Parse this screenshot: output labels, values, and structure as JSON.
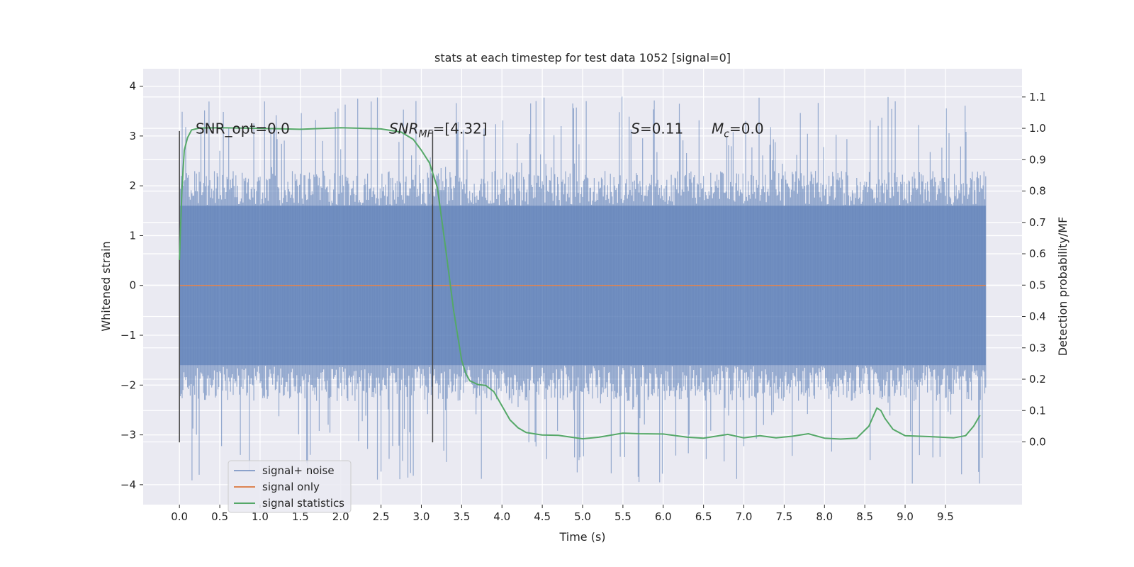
{
  "chart_data": {
    "type": "line",
    "title": "stats at each timestep for test data 1052 [signal=0]",
    "xlabel": "Time (s)",
    "ylabel": "Whitened strain",
    "ylabel_right": "Detection probability/MF",
    "xlim": [
      -0.45,
      10.45
    ],
    "ylim": [
      -4.4,
      4.35
    ],
    "ylim_right": [
      -0.2,
      1.19
    ],
    "xticks": [
      0.0,
      0.5,
      1.0,
      1.5,
      2.0,
      2.5,
      3.0,
      3.5,
      4.0,
      4.5,
      5.0,
      5.5,
      6.0,
      6.5,
      7.0,
      7.5,
      8.0,
      8.5,
      9.0,
      9.5
    ],
    "xtick_labels": [
      "0.0",
      "0.5",
      "1.0",
      "1.5",
      "2.0",
      "2.5",
      "3.0",
      "3.5",
      "4.0",
      "4.5",
      "5.0",
      "5.5",
      "6.0",
      "6.5",
      "7.0",
      "7.5",
      "8.0",
      "8.5",
      "9.0",
      "9.5"
    ],
    "yticks": [
      4,
      3,
      2,
      1,
      0,
      -1,
      -2,
      -3,
      -4
    ],
    "ytick_labels": [
      "4",
      "3",
      "2",
      "1",
      "0",
      "−1",
      "−2",
      "−3",
      "−4"
    ],
    "yticks_right": [
      1.1,
      1.0,
      0.9,
      0.8,
      0.7,
      0.6,
      0.5,
      0.4,
      0.3,
      0.2,
      0.1,
      0.0
    ],
    "ytick_labels_right": [
      "1.1",
      "1.0",
      "0.9",
      "0.8",
      "0.7",
      "0.6",
      "0.5",
      "0.4",
      "0.3",
      "0.2",
      "0.1",
      "0.0"
    ],
    "grid": true,
    "legend_position": "lower-left",
    "background_color": "#eaeaf2",
    "series": [
      {
        "name": "signal+ noise",
        "color": "#4c72b0",
        "axis": "left",
        "style": "noise band",
        "x_range": [
          0.0,
          10.0
        ],
        "band_typical": [
          -1.6,
          1.6
        ],
        "peaks_max": 3.85,
        "peaks_min": -4.05
      },
      {
        "name": "signal only",
        "color": "#dd8452",
        "axis": "left",
        "x": [
          0.0,
          10.0
        ],
        "y": [
          0.0,
          0.0
        ]
      },
      {
        "name": "signal statistics",
        "color": "#55a868",
        "axis": "right",
        "x": [
          0.0,
          0.03,
          0.06,
          0.1,
          0.15,
          0.25,
          0.5,
          1.0,
          1.5,
          2.0,
          2.5,
          2.75,
          2.9,
          3.0,
          3.1,
          3.2,
          3.3,
          3.4,
          3.5,
          3.55,
          3.6,
          3.7,
          3.8,
          3.9,
          4.0,
          4.1,
          4.2,
          4.3,
          4.5,
          4.7,
          5.0,
          5.2,
          5.5,
          5.7,
          6.0,
          6.3,
          6.5,
          6.8,
          7.0,
          7.2,
          7.4,
          7.6,
          7.8,
          8.0,
          8.2,
          8.4,
          8.55,
          8.65,
          8.7,
          8.75,
          8.85,
          9.0,
          9.3,
          9.6,
          9.75,
          9.85,
          9.93
        ],
        "y": [
          0.58,
          0.8,
          0.93,
          0.97,
          0.995,
          1.001,
          1.002,
          1.0,
          0.997,
          1.002,
          0.998,
          0.988,
          0.965,
          0.93,
          0.89,
          0.81,
          0.62,
          0.42,
          0.26,
          0.22,
          0.195,
          0.183,
          0.18,
          0.16,
          0.115,
          0.07,
          0.045,
          0.03,
          0.022,
          0.021,
          0.01,
          0.015,
          0.028,
          0.026,
          0.025,
          0.015,
          0.012,
          0.024,
          0.013,
          0.02,
          0.013,
          0.018,
          0.026,
          0.012,
          0.009,
          0.012,
          0.05,
          0.108,
          0.1,
          0.075,
          0.04,
          0.02,
          0.017,
          0.013,
          0.02,
          0.05,
          0.085
        ]
      }
    ],
    "vlines": [
      {
        "x": 0.0,
        "y_range": [
          -3.15,
          3.1
        ],
        "color": "#444444"
      },
      {
        "x": 3.14,
        "y_range": [
          -3.15,
          3.1
        ],
        "color": "#444444"
      }
    ],
    "annotations": [
      {
        "html": "SNR_opt=0.0",
        "x": 0.2,
        "y": 3.15
      },
      {
        "html": "<tspan font-style=\"italic\">SNR</tspan><tspan font-style=\"italic\" font-size=\"14\" dy=\"5\">MF</tspan><tspan dy=\"-5\">=[4.32]</tspan>",
        "x": 2.6,
        "y": 3.15
      },
      {
        "html": "<tspan font-style=\"italic\">S</tspan>=0.11",
        "x": 5.6,
        "y": 3.15
      },
      {
        "html": "<tspan font-style=\"italic\">M</tspan><tspan font-style=\"italic\" font-size=\"14\" dy=\"5\">c</tspan><tspan dy=\"-5\">=0.0</tspan>",
        "x": 6.6,
        "y": 3.15
      }
    ]
  }
}
